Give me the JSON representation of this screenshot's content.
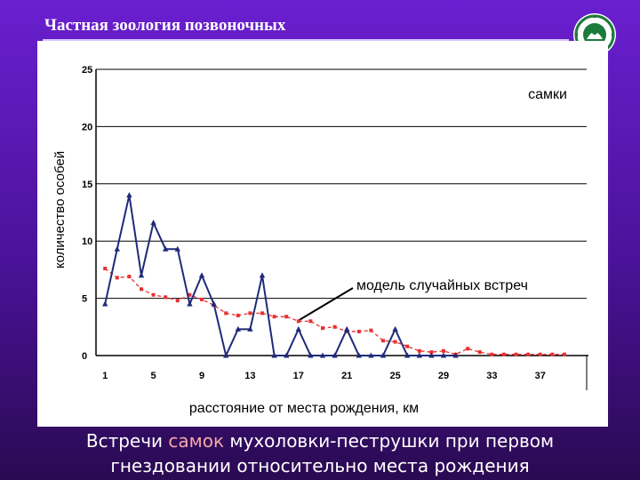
{
  "slide": {
    "title": "Частная зоология позвоночных",
    "caption_pre": "Встречи ",
    "caption_highlight": "самок",
    "caption_post1": " мухоловки-пеструшки при первом",
    "caption_line2": "гнездовании относительно места рождения"
  },
  "colors": {
    "observed": "#1f2a7a",
    "model": "#e83030"
  },
  "chart_data": {
    "type": "line",
    "ylabel": "количество особей",
    "xlabel": "расстояние от места рождения, км",
    "series_label": "самки",
    "model_annotation": "модель случайных встреч",
    "ylim": [
      0,
      25
    ],
    "yticks": [
      0,
      5,
      10,
      15,
      20,
      25
    ],
    "xticks": [
      1,
      5,
      9,
      13,
      17,
      21,
      25,
      29,
      33,
      37
    ],
    "x": [
      1,
      2,
      3,
      4,
      5,
      6,
      7,
      8,
      9,
      10,
      11,
      12,
      13,
      14,
      15,
      16,
      17,
      18,
      19,
      20,
      21,
      22,
      23,
      24,
      25,
      26,
      27,
      28,
      29,
      30,
      31,
      32,
      33,
      34,
      35,
      36,
      37,
      38,
      39
    ],
    "series": [
      {
        "name": "самки",
        "values": [
          4.5,
          9.3,
          14,
          7,
          11.6,
          9.3,
          9.3,
          4.5,
          7,
          4.5,
          0,
          2.3,
          2.3,
          7,
          0,
          0,
          2.3,
          0,
          0,
          0,
          2.3,
          0,
          0,
          0,
          2.3,
          0,
          0,
          0,
          0,
          0,
          null,
          null,
          null,
          null,
          null,
          null,
          null,
          null,
          null
        ]
      },
      {
        "name": "модель случайных встреч",
        "values": [
          7.6,
          6.8,
          6.9,
          5.8,
          5.3,
          5.1,
          4.8,
          5.3,
          4.9,
          4.4,
          3.7,
          3.5,
          3.7,
          3.7,
          3.4,
          3.4,
          3,
          3,
          2.4,
          2.5,
          2.1,
          2.1,
          2.2,
          1.3,
          1.2,
          0.8,
          0.4,
          0.3,
          0.4,
          0.1,
          0.6,
          0.3,
          0.1,
          0.1,
          0.1,
          0.1,
          0.1,
          0.1,
          0.1
        ]
      }
    ]
  }
}
